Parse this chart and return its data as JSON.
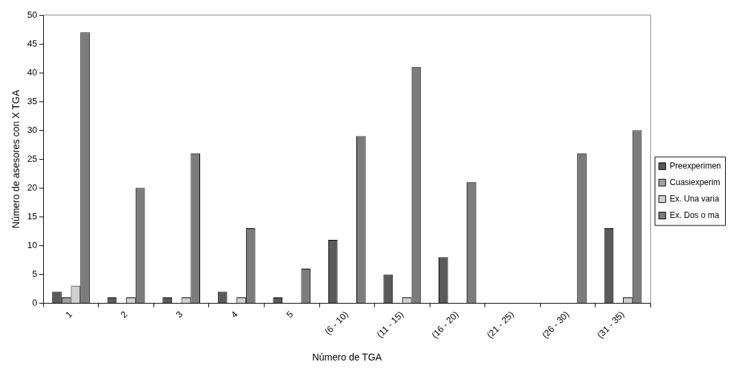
{
  "chart_data": {
    "type": "bar",
    "xlabel": "Número de TGA",
    "ylabel": "Número de asesores con X TGA",
    "categories": [
      "1",
      "2",
      "3",
      "4",
      "5",
      "(6 - 10)",
      "(11 - 15)",
      "(16 - 20)",
      "(21 - 25)",
      "(26 - 30)",
      "(31 - 35)"
    ],
    "series": [
      {
        "name": "Preexperimen",
        "color": "#5a5a5a",
        "values": [
          2,
          1,
          1,
          2,
          1,
          11,
          5,
          8,
          null,
          null,
          13
        ]
      },
      {
        "name": "Cuasiexperim",
        "color": "#a0a0a0",
        "values": [
          1,
          null,
          null,
          null,
          null,
          null,
          null,
          null,
          null,
          null,
          null
        ]
      },
      {
        "name": "Ex. Una varia",
        "color": "#d0d0d0",
        "values": [
          3,
          1,
          1,
          1,
          null,
          null,
          1,
          null,
          null,
          null,
          1
        ]
      },
      {
        "name": "Ex. Dos o ma",
        "color": "#7c7c7c",
        "values": [
          47,
          20,
          26,
          13,
          6,
          29,
          41,
          21,
          null,
          26,
          30
        ]
      }
    ],
    "ylim": [
      0,
      50
    ],
    "yticks": [
      0,
      5,
      10,
      15,
      20,
      25,
      30,
      35,
      40,
      45,
      50
    ],
    "grid": false,
    "legend": "right"
  }
}
